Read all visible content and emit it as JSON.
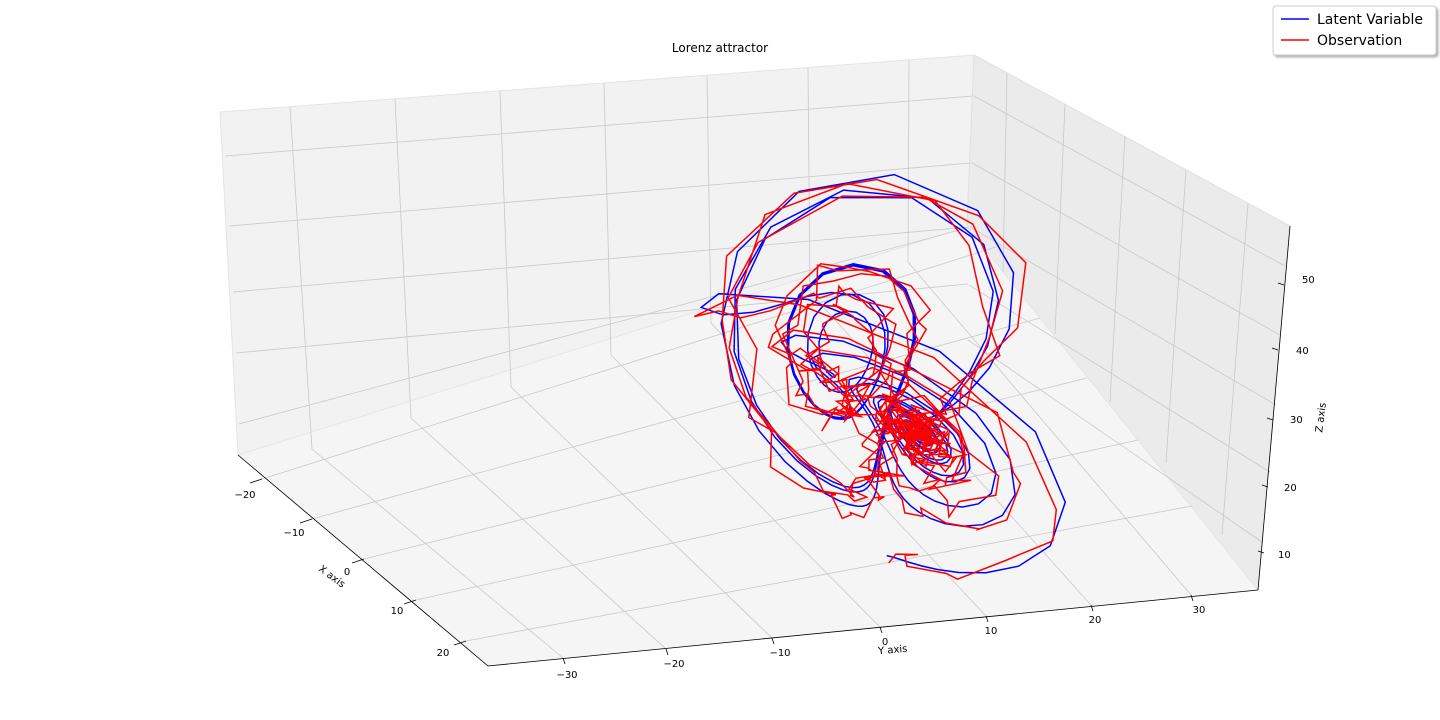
{
  "chart_data": {
    "type": "line",
    "projection": "3d",
    "title": "Lorenz attractor",
    "xlabel": "X axis",
    "ylabel": "Y axis",
    "zlabel": "Z axis",
    "xlim": [
      -25,
      25
    ],
    "ylim": [
      -35,
      35
    ],
    "zlim": [
      5,
      55
    ],
    "xticks": [
      "−20",
      "−10",
      "0",
      "10",
      "20"
    ],
    "yticks": [
      "−30",
      "−20",
      "−10",
      "0",
      "10",
      "20",
      "30"
    ],
    "zticks": [
      "10",
      "20",
      "30",
      "40",
      "50"
    ],
    "grid": true,
    "legend_position": "top-right",
    "series": [
      {
        "name": "Latent Variable",
        "color": "#0000ff"
      },
      {
        "name": "Observation",
        "color": "#ff0000"
      }
    ]
  }
}
